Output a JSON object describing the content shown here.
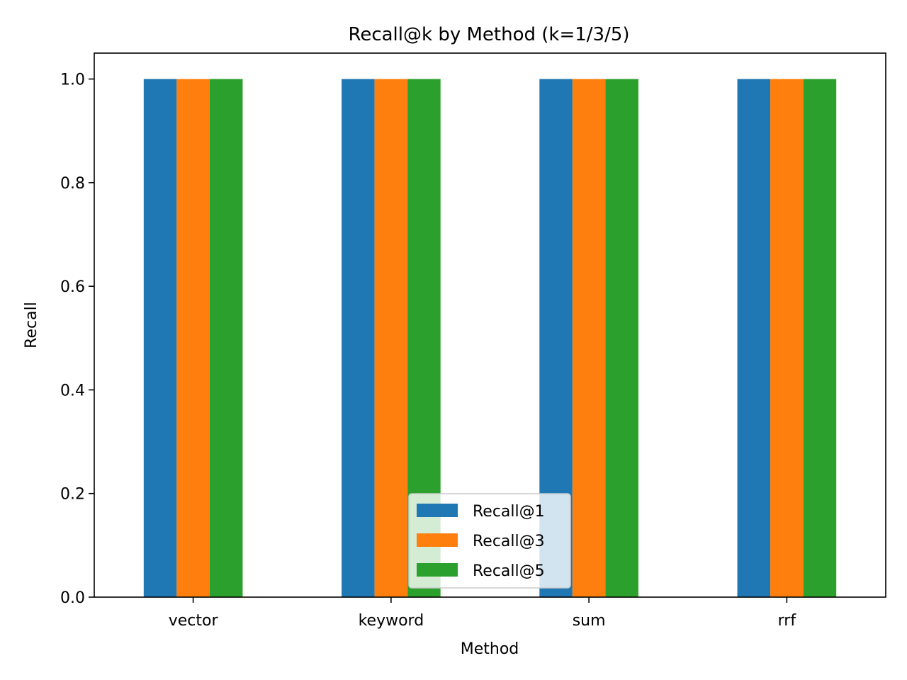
{
  "chart_data": {
    "type": "bar",
    "title": "Recall@k by Method (k=1/3/5)",
    "xlabel": "Method",
    "ylabel": "Recall",
    "categories": [
      "vector",
      "keyword",
      "sum",
      "rrf"
    ],
    "series": [
      {
        "name": "Recall@1",
        "values": [
          1.0,
          1.0,
          1.0,
          1.0
        ],
        "color": "#1f77b4"
      },
      {
        "name": "Recall@3",
        "values": [
          1.0,
          1.0,
          1.0,
          1.0
        ],
        "color": "#ff7f0e"
      },
      {
        "name": "Recall@5",
        "values": [
          1.0,
          1.0,
          1.0,
          1.0
        ],
        "color": "#2ca02c"
      }
    ],
    "ylim": [
      0,
      1.05
    ],
    "yticks": [
      "0.0",
      "0.2",
      "0.4",
      "0.6",
      "0.8",
      "1.0"
    ],
    "grid": false,
    "legend_position": "lower center"
  }
}
